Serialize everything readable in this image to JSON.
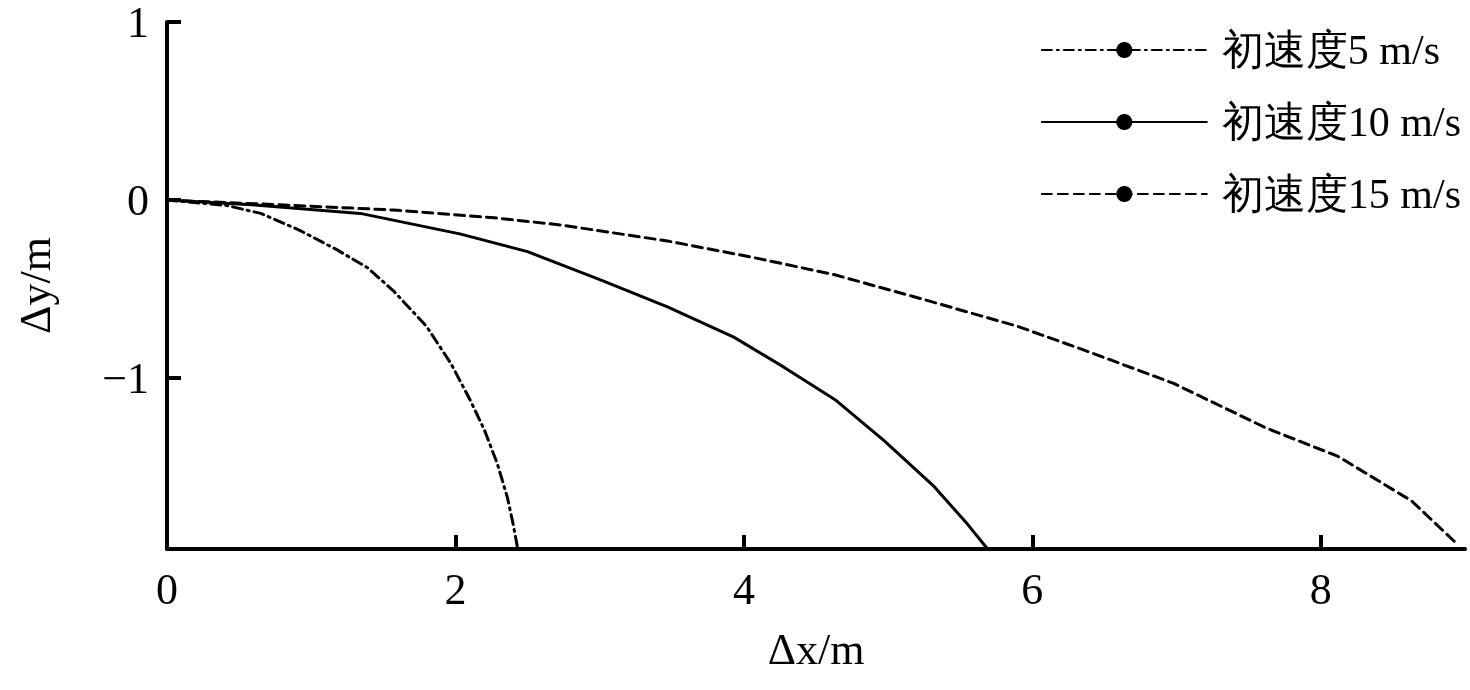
{
  "chart_data": {
    "type": "line",
    "xlabel": "Δx/m",
    "ylabel": "Δy/m",
    "xlim": [
      0,
      9
    ],
    "xticks": [
      0,
      2,
      4,
      6,
      8
    ],
    "ylim": [
      -1.96,
      1
    ],
    "yticks": [
      {
        "value": -1,
        "label": "−1"
      },
      0,
      1
    ],
    "grid": false,
    "legend": "top right",
    "series": [
      {
        "name": "初速度5 m/s",
        "color": "#000000",
        "line_style": "dashdot",
        "x": [
          0,
          0.41,
          0.65,
          0.92,
          1.18,
          1.39,
          1.57,
          1.8,
          1.97,
          2.1,
          2.2,
          2.29,
          2.36,
          2.4,
          2.43
        ],
        "values": [
          0,
          -0.03,
          -0.075,
          -0.17,
          -0.28,
          -0.38,
          -0.51,
          -0.71,
          -0.92,
          -1.12,
          -1.29,
          -1.48,
          -1.67,
          -1.82,
          -1.95
        ]
      },
      {
        "name": "初速度10 m/s",
        "color": "#000000",
        "line_style": "solid",
        "x": [
          0,
          0.65,
          1.34,
          2.03,
          2.5,
          3.01,
          3.47,
          3.93,
          4.28,
          4.63,
          4.97,
          5.32,
          5.55,
          5.69
        ],
        "values": [
          0,
          -0.03,
          -0.075,
          -0.19,
          -0.29,
          -0.45,
          -0.6,
          -0.77,
          -0.94,
          -1.12,
          -1.35,
          -1.61,
          -1.82,
          -1.96
        ]
      },
      {
        "name": "初速度15 m/s",
        "color": "#000000",
        "line_style": "dashed",
        "x": [
          0,
          0.88,
          1.57,
          2.27,
          2.73,
          3.47,
          4.05,
          4.63,
          5.21,
          5.9,
          6.35,
          6.98,
          7.62,
          8.12,
          8.63,
          8.93
        ],
        "values": [
          0,
          -0.03,
          -0.056,
          -0.1,
          -0.14,
          -0.23,
          -0.32,
          -0.42,
          -0.55,
          -0.71,
          -0.84,
          -1.03,
          -1.28,
          -1.44,
          -1.69,
          -1.92
        ]
      }
    ]
  }
}
